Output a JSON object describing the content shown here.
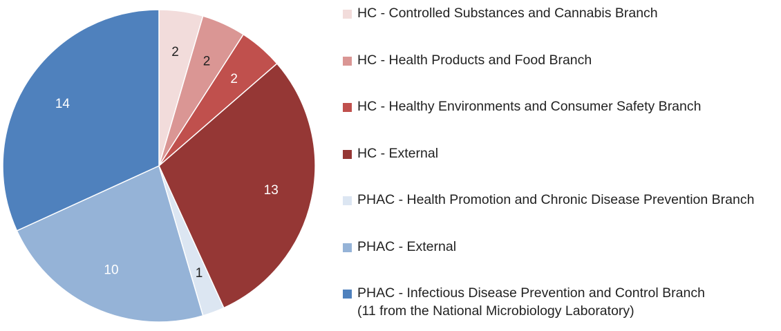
{
  "chart_data": {
    "type": "pie",
    "title": "",
    "start_angle_deg": 0,
    "direction": "clockwise",
    "slices": [
      {
        "name": "HC - Controlled Substances and Cannabis Branch",
        "value": 2,
        "color": "#F2DCDB",
        "label_color": "#222222"
      },
      {
        "name": "HC - Health Products and Food Branch",
        "value": 2,
        "color": "#DA9694",
        "label_color": "#222222"
      },
      {
        "name": "HC - Healthy Environments and Consumer Safety Branch",
        "value": 2,
        "color": "#C0504D",
        "label_color": "#ffffff"
      },
      {
        "name": "HC - External",
        "value": 13,
        "color": "#953735",
        "label_color": "#ffffff"
      },
      {
        "name": "PHAC - Health Promotion and Chronic Disease Prevention Branch",
        "value": 1,
        "color": "#DCE6F2",
        "label_color": "#222222"
      },
      {
        "name": "PHAC - External",
        "value": 10,
        "color": "#95B3D7",
        "label_color": "#ffffff"
      },
      {
        "name": "PHAC - Infectious Disease Prevention and Control Branch",
        "name_line2": "(11 from the National Microbiology Laboratory)",
        "value": 14,
        "color": "#4F81BD",
        "label_color": "#ffffff"
      }
    ]
  }
}
